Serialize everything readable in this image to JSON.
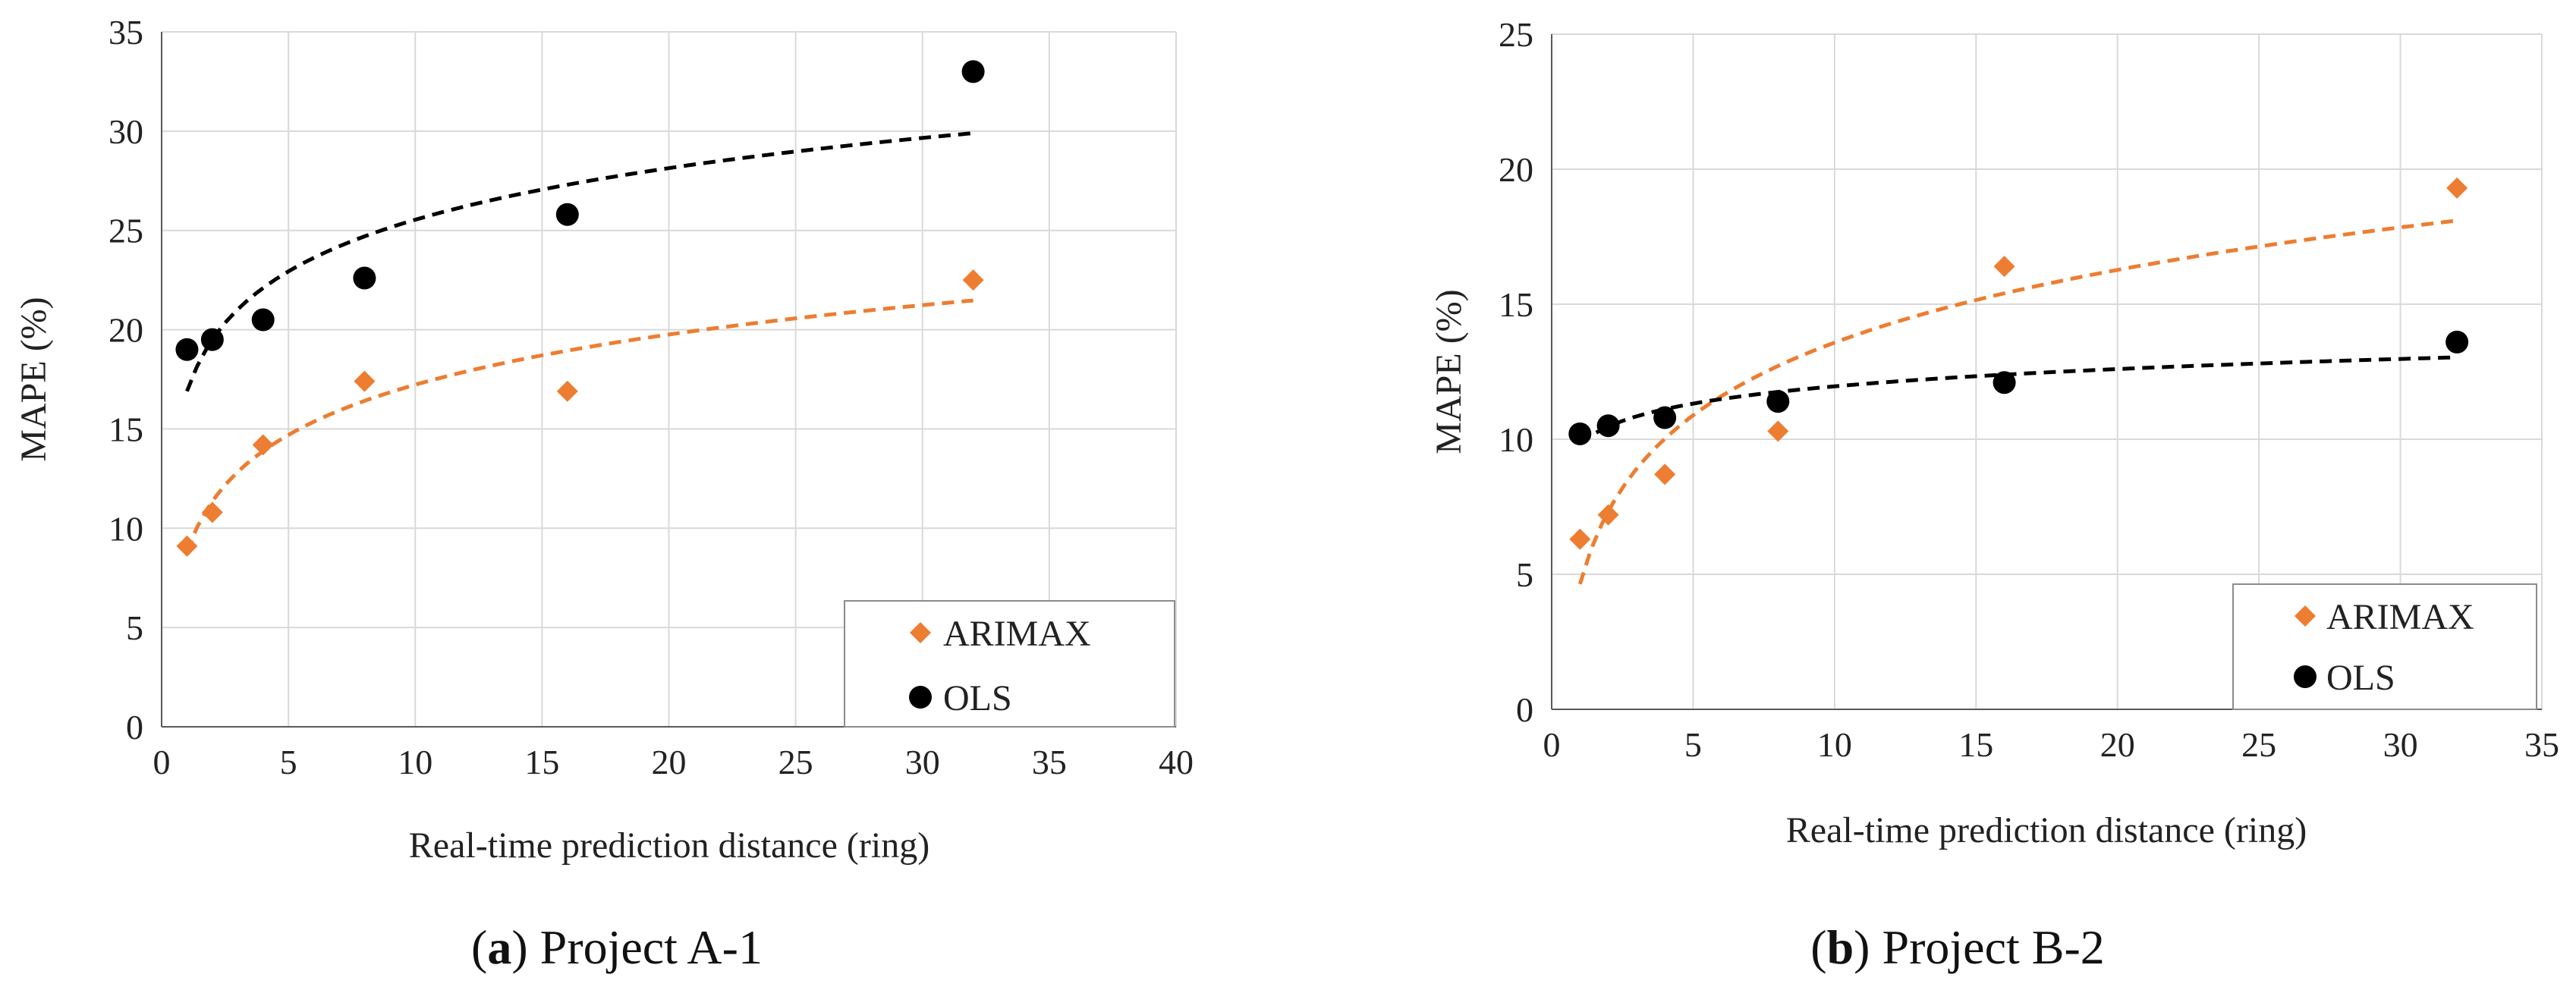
{
  "figure": {
    "panels": [
      {
        "letter": "a",
        "caption": "Project A-1"
      },
      {
        "letter": "b",
        "caption": "Project B-2"
      }
    ]
  },
  "colors": {
    "arimax": "#ED7D31",
    "ols": "#000000",
    "grid": "#D9D9D9",
    "axis": "#595959"
  },
  "chart_data": [
    {
      "type": "scatter",
      "title": "Project A-1",
      "xlabel": "Real-time prediction distance (ring)",
      "ylabel": "MAPE (%)",
      "xlim": [
        0,
        40
      ],
      "ylim": [
        0,
        35
      ],
      "xticks": [
        0,
        5,
        10,
        15,
        20,
        25,
        30,
        35,
        40
      ],
      "yticks": [
        0,
        5,
        10,
        15,
        20,
        25,
        30,
        35
      ],
      "grid": true,
      "legend_position": "bottom-right",
      "series": [
        {
          "name": "ARIMAX",
          "marker": "diamond",
          "color": "#ED7D31",
          "x": [
            1,
            2,
            4,
            8,
            16,
            32
          ],
          "y": [
            9.1,
            10.8,
            14.2,
            17.4,
            16.9,
            22.5
          ],
          "trend": {
            "type": "logarithmic",
            "x_range": [
              1,
              32
            ]
          }
        },
        {
          "name": "OLS",
          "marker": "circle",
          "color": "#000000",
          "x": [
            1,
            2,
            4,
            8,
            16,
            32
          ],
          "y": [
            19.0,
            19.5,
            20.5,
            22.6,
            25.8,
            33.0
          ],
          "trend": {
            "type": "logarithmic",
            "x_range": [
              1,
              32
            ]
          }
        }
      ]
    },
    {
      "type": "scatter",
      "title": "Project B-2",
      "xlabel": "Real-time prediction distance (ring)",
      "ylabel": "MAPE (%)",
      "xlim": [
        0,
        35
      ],
      "ylim": [
        0,
        25
      ],
      "xticks": [
        0,
        5,
        10,
        15,
        20,
        25,
        30,
        35
      ],
      "yticks": [
        0,
        5,
        10,
        15,
        20,
        25
      ],
      "grid": true,
      "legend_position": "bottom-right",
      "series": [
        {
          "name": "ARIMAX",
          "marker": "diamond",
          "color": "#ED7D31",
          "x": [
            1,
            2,
            4,
            8,
            16,
            32
          ],
          "y": [
            6.3,
            7.2,
            8.7,
            10.3,
            16.4,
            19.3
          ],
          "trend": {
            "type": "logarithmic",
            "x_range": [
              1,
              32
            ]
          }
        },
        {
          "name": "OLS",
          "marker": "circle",
          "color": "#000000",
          "x": [
            1,
            2,
            4,
            8,
            16,
            32
          ],
          "y": [
            10.2,
            10.5,
            10.8,
            11.4,
            12.1,
            13.6
          ],
          "trend": {
            "type": "logarithmic",
            "x_range": [
              1,
              32
            ]
          }
        }
      ]
    }
  ]
}
